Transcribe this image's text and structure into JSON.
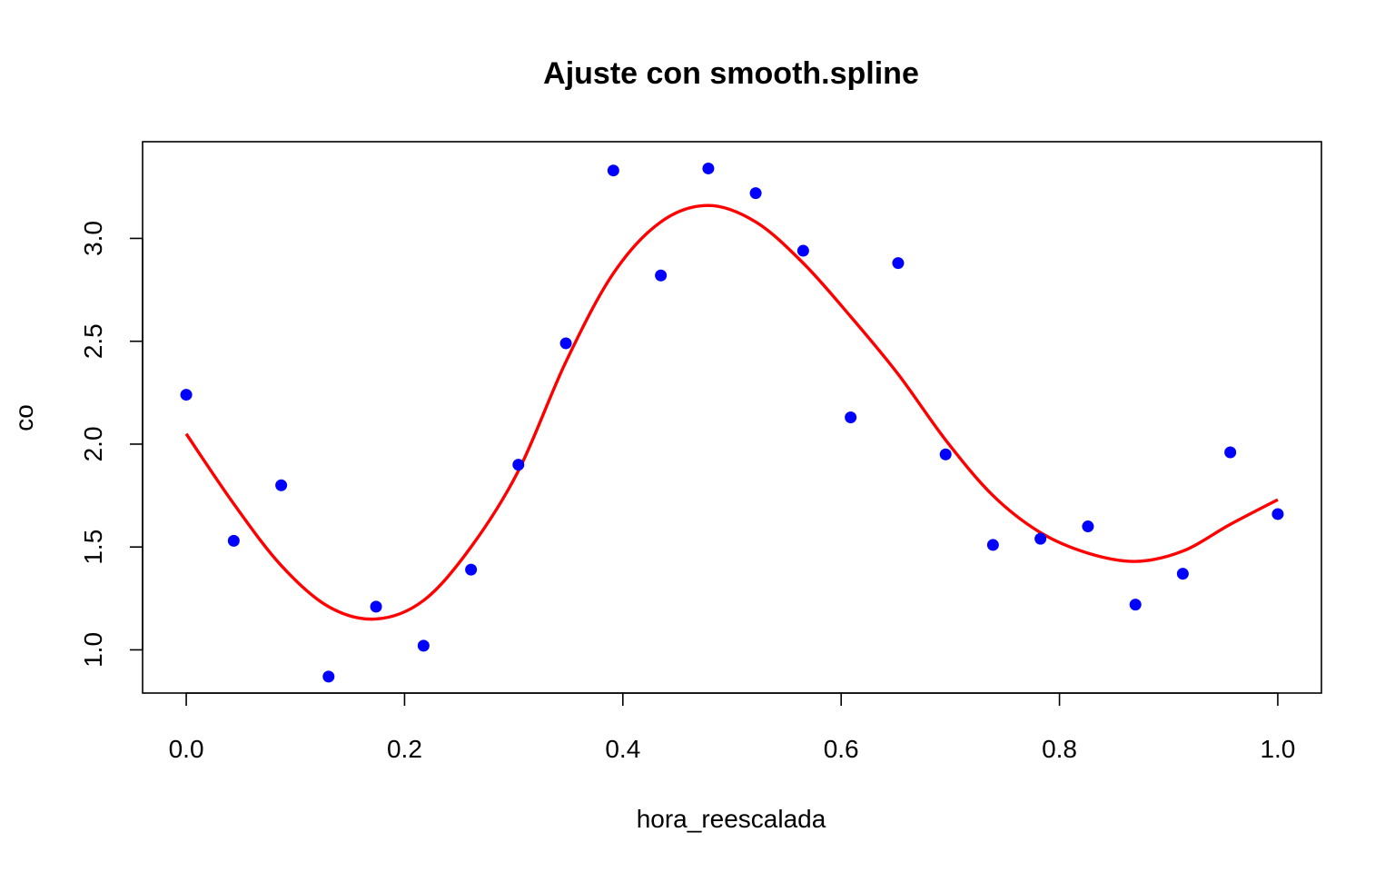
{
  "chart_data": {
    "type": "scatter",
    "title": "Ajuste con smooth.spline",
    "xlabel": "hora_reescalada",
    "ylabel": "co",
    "xlim": [
      -0.04,
      1.04
    ],
    "ylim": [
      0.79,
      3.47
    ],
    "xticks": [
      0.0,
      0.2,
      0.4,
      0.6,
      0.8,
      1.0
    ],
    "xtick_labels": [
      "0.0",
      "0.2",
      "0.4",
      "0.6",
      "0.8",
      "1.0"
    ],
    "yticks": [
      1.0,
      1.5,
      2.0,
      2.5,
      3.0
    ],
    "ytick_labels": [
      "1.0",
      "1.5",
      "2.0",
      "2.5",
      "3.0"
    ],
    "grid": false,
    "series": [
      {
        "kind": "points",
        "color": "#0000ff",
        "x": [
          0.0,
          0.0435,
          0.087,
          0.1304,
          0.1739,
          0.2174,
          0.2609,
          0.3043,
          0.3478,
          0.3913,
          0.4348,
          0.4783,
          0.5217,
          0.5652,
          0.6087,
          0.6522,
          0.6957,
          0.7391,
          0.7826,
          0.8261,
          0.8696,
          0.913,
          0.9565,
          1.0
        ],
        "y": [
          2.24,
          1.53,
          1.8,
          0.87,
          1.21,
          1.02,
          1.39,
          1.9,
          2.49,
          3.33,
          2.82,
          3.34,
          3.22,
          2.94,
          2.13,
          2.88,
          1.95,
          1.51,
          1.54,
          1.6,
          1.22,
          1.37,
          1.96,
          1.66
        ]
      },
      {
        "kind": "line",
        "color": "#ff0000",
        "x": [
          0.0,
          0.0435,
          0.087,
          0.1304,
          0.1739,
          0.2174,
          0.2609,
          0.3043,
          0.3478,
          0.3913,
          0.4348,
          0.4783,
          0.5217,
          0.5652,
          0.6087,
          0.6522,
          0.6957,
          0.7391,
          0.7826,
          0.8261,
          0.8696,
          0.913,
          0.9565,
          1.0
        ],
        "y": [
          2.05,
          1.71,
          1.41,
          1.21,
          1.15,
          1.24,
          1.5,
          1.87,
          2.4,
          2.83,
          3.08,
          3.16,
          3.08,
          2.88,
          2.62,
          2.34,
          2.02,
          1.75,
          1.57,
          1.47,
          1.43,
          1.48,
          1.61,
          1.73
        ]
      }
    ]
  }
}
